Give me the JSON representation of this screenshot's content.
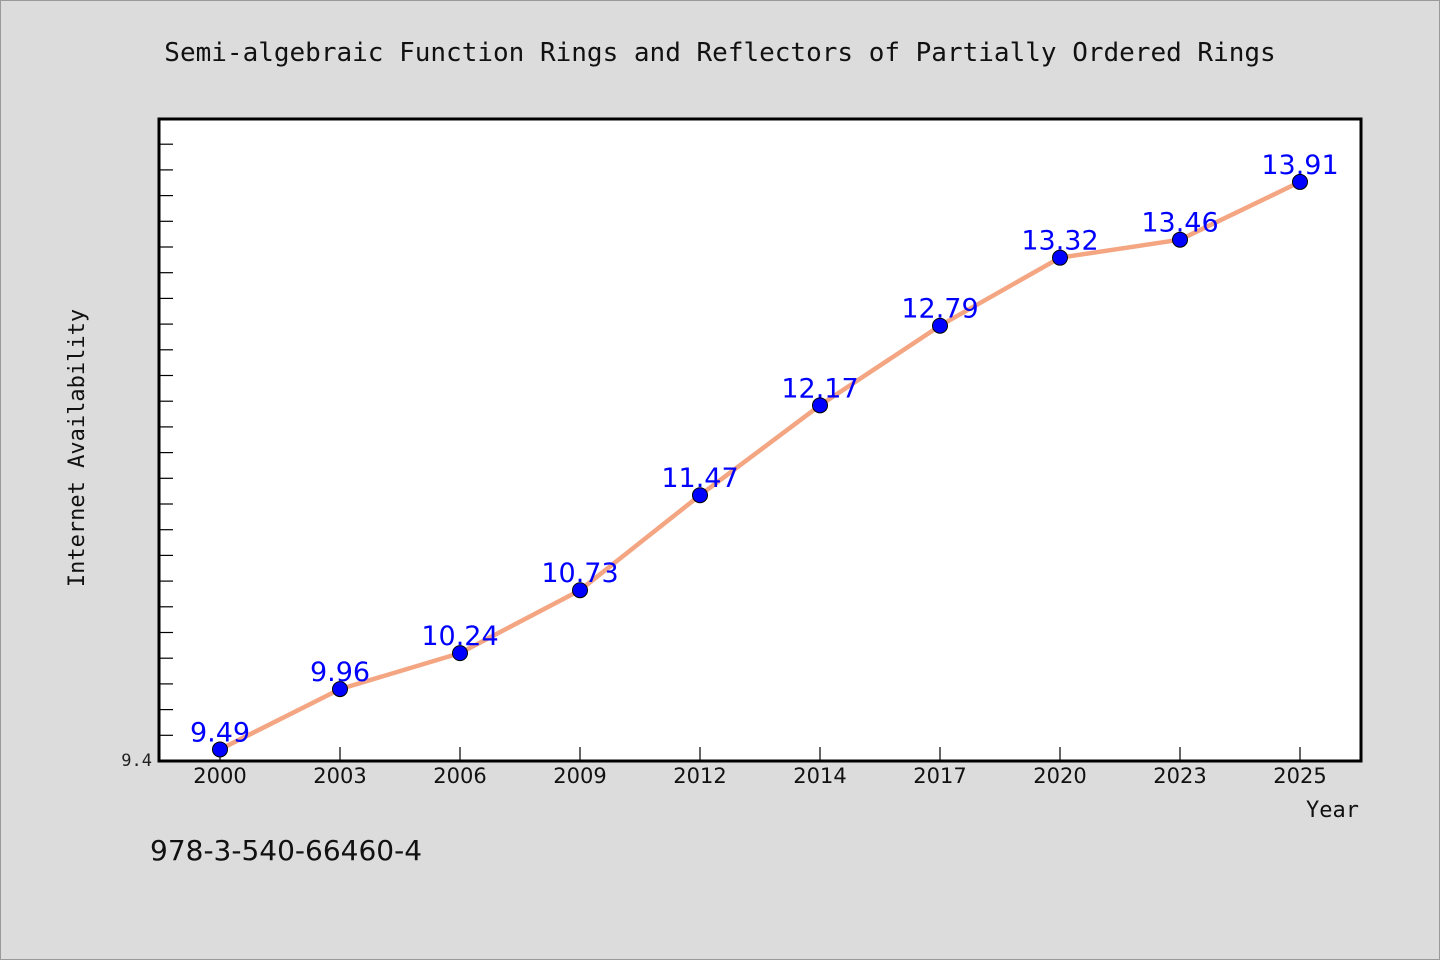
{
  "chart_data": {
    "type": "line",
    "title": "Semi-algebraic Function Rings and Reflectors of Partially Ordered Rings",
    "xlabel": "Year",
    "ylabel": "Internet Availability",
    "categories": [
      "2000",
      "2003",
      "2006",
      "2009",
      "2012",
      "2014",
      "2017",
      "2020",
      "2023",
      "2025"
    ],
    "values": [
      9.49,
      9.96,
      10.24,
      10.73,
      11.47,
      12.17,
      12.79,
      13.32,
      13.46,
      13.91
    ],
    "data_labels": [
      "9.49",
      "9.96",
      "10.24",
      "10.73",
      "11.47",
      "12.17",
      "12.79",
      "13.32",
      "13.46",
      "13.91"
    ],
    "ylim": [
      9.4,
      14.4
    ],
    "y_tick_label": "9.4",
    "grid": false,
    "legend": "none",
    "line_color": "#f4a582",
    "marker_color": "#0000ff",
    "label_color": "#0000ff"
  },
  "footer": {
    "isbn": "978-3-540-66460-4"
  }
}
